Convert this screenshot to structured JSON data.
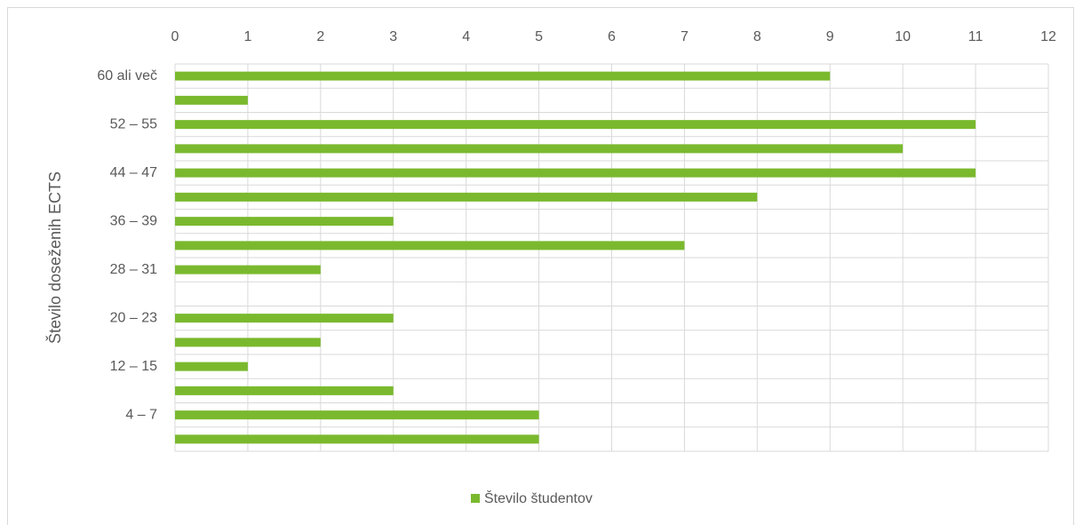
{
  "chart_data": {
    "type": "barh",
    "ylabel": "Število doseženih ECTS",
    "categories": [
      "60 ali več",
      null,
      "52 – 55",
      null,
      "44 – 47",
      null,
      "36 – 39",
      null,
      "28 – 31",
      null,
      "20 – 23",
      null,
      "12 – 15",
      null,
      "4 – 7",
      null
    ],
    "series": [
      {
        "name": "Število študentov",
        "color": "#7ab92e",
        "values": [
          9,
          1,
          11,
          10,
          11,
          8,
          3,
          7,
          2,
          0,
          3,
          2,
          1,
          3,
          5,
          5
        ]
      }
    ],
    "xlim": [
      0,
      12
    ],
    "xticks": [
      0,
      1,
      2,
      3,
      4,
      5,
      6,
      7,
      8,
      9,
      10,
      11,
      12
    ],
    "grid": true,
    "legend": "bottom"
  }
}
